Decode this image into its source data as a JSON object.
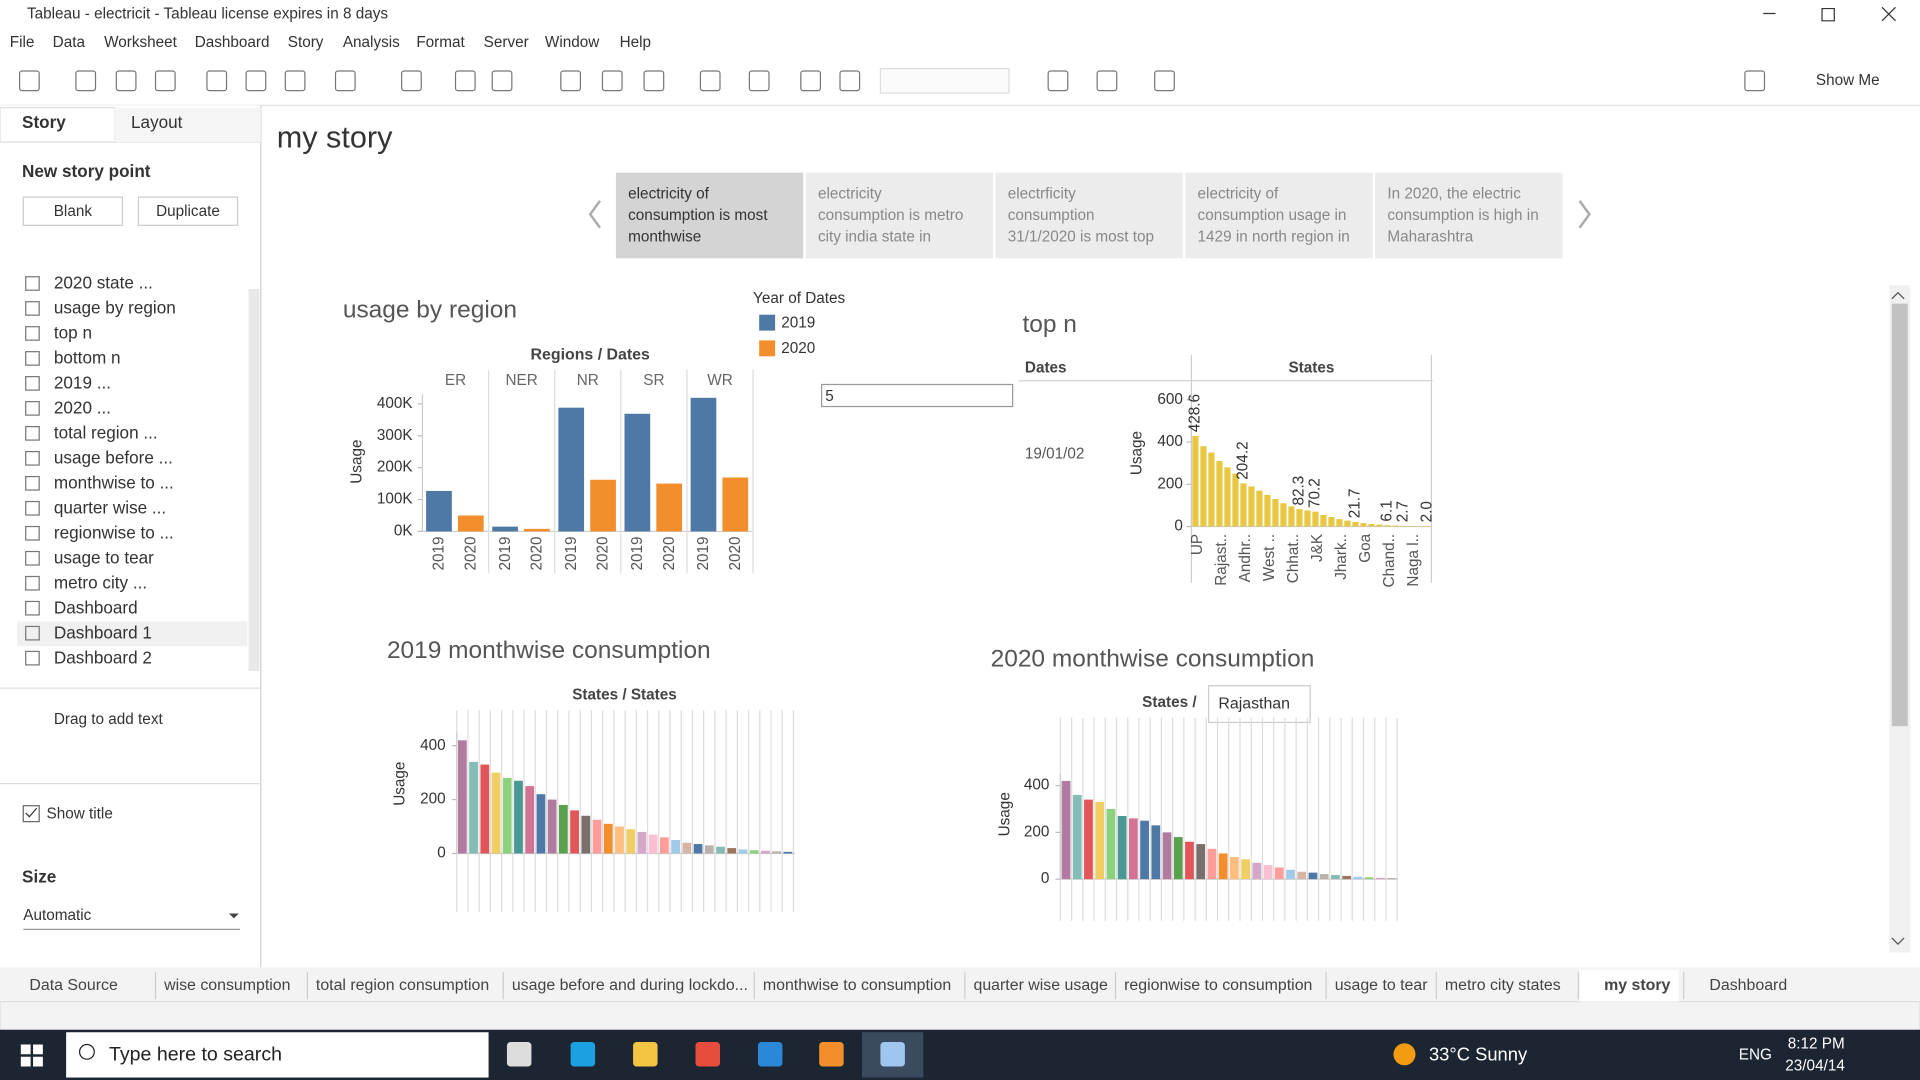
{
  "window": {
    "title": "Tableau - electricit - Tableau license expires in 8 days",
    "menu": [
      "File",
      "Data",
      "Worksheet",
      "Dashboard",
      "Story",
      "Analysis",
      "Format",
      "Server",
      "Window",
      "Help"
    ],
    "show_me": "Show Me"
  },
  "side_panel": {
    "tabs": [
      "Story",
      "Layout"
    ],
    "new_story_point": "New story point",
    "buttons": [
      "Blank",
      "Duplicate"
    ],
    "sheets": [
      "2020 state ...",
      "usage by region",
      "top n",
      "bottom n",
      "2019 ...",
      "2020 ...",
      "total region ...",
      "usage before ...",
      "monthwise to ...",
      "quarter wise ...",
      "regionwise to ...",
      "usage to tear",
      "metro city ...",
      "Dashboard",
      "Dashboard 1",
      "Dashboard 2"
    ],
    "drag_text": "Drag to add text",
    "show_title": "Show title",
    "size_label": "Size",
    "size_value": "Automatic"
  },
  "story": {
    "title": "my story",
    "points": [
      {
        "lines": [
          "electricity of",
          "consumption is most",
          "monthwise"
        ]
      },
      {
        "lines": [
          "electricity",
          "consumption is metro",
          "city india state  in"
        ]
      },
      {
        "lines": [
          "electrficity",
          "consumption",
          "31/1/2020 is most top"
        ]
      },
      {
        "lines": [
          "electricity of",
          "consumption usage in",
          "1429 in north region in"
        ]
      },
      {
        "lines": [
          "In 2020, the electric",
          "consumption is high in",
          "Maharashtra"
        ]
      }
    ]
  },
  "filter_input": 5,
  "tooltip": "Rajasthan",
  "charts": [
    {
      "type": "bar",
      "title": "usage by region",
      "header": "Regions / Dates",
      "y_label": "Usage",
      "legend_title": "Year of Dates",
      "categories": [
        "ER",
        "NER",
        "NR",
        "SR",
        "WR"
      ],
      "series": [
        {
          "name": "2019",
          "color": "#4e79a7",
          "values": [
            127,
            15,
            388,
            369,
            419
          ]
        },
        {
          "name": "2020",
          "color": "#f28e2b",
          "values": [
            50,
            8,
            162,
            150,
            169
          ]
        }
      ],
      "ylim": [
        0,
        430
      ],
      "yticks": [
        {
          "value": 0,
          "label": "0K"
        },
        {
          "value": 100,
          "label": "100K"
        },
        {
          "value": 200,
          "label": "200K"
        },
        {
          "value": 300,
          "label": "300K"
        },
        {
          "value": 400,
          "label": "400K"
        }
      ]
    },
    {
      "type": "bar",
      "title": "top n",
      "headers": [
        "Dates",
        "States"
      ],
      "row_label": "19/01/02",
      "y_label": "Usage",
      "color": "#e8c640",
      "categories": [
        "UP",
        null,
        null,
        "Rajast..",
        null,
        null,
        "Andhr..",
        null,
        null,
        "West ..",
        null,
        null,
        "Chhat..",
        null,
        null,
        "J&K",
        null,
        null,
        "Jhark..",
        null,
        null,
        "Goa",
        null,
        null,
        "Chand..",
        null,
        null,
        "Naga l..",
        null,
        null
      ],
      "values": [
        428.6,
        380,
        350,
        310,
        280,
        250,
        204.2,
        190,
        170,
        150,
        130,
        110,
        95,
        82.3,
        76,
        70.2,
        55,
        45,
        35,
        28,
        21.7,
        16,
        12,
        9,
        6.1,
        4.5,
        2.7,
        2.4,
        2.2,
        2.0
      ],
      "value_labels": [
        "428.6",
        null,
        null,
        null,
        null,
        null,
        "204.2",
        null,
        null,
        null,
        null,
        null,
        null,
        "82.3",
        null,
        "70.2",
        null,
        null,
        null,
        null,
        "21.7",
        null,
        null,
        null,
        "6.1",
        null,
        "2.7",
        null,
        null,
        "2.0"
      ],
      "ylim": [
        0,
        620
      ],
      "yticks": [
        0,
        200,
        400,
        600
      ]
    },
    {
      "type": "bar",
      "title": "2019 monthwise consumption",
      "header": "States / States",
      "y_label": "Usage",
      "values": [
        420,
        340,
        330,
        300,
        280,
        270,
        250,
        220,
        200,
        180,
        160,
        140,
        125,
        110,
        100,
        90,
        80,
        70,
        60,
        50,
        40,
        35,
        30,
        25,
        20,
        15,
        12,
        10,
        8,
        6
      ],
      "colors": [
        "#b07aa1",
        "#86bcb6",
        "#e15759",
        "#f1ce63",
        "#8cd17d",
        "#499894",
        "#d37295",
        "#4e79a7",
        "#b07aa1",
        "#59a14f",
        "#e15759",
        "#79706e",
        "#ff9d9a",
        "#f28e2b",
        "#ffbe7d",
        "#f1ce63",
        "#d4a6c8",
        "#fabfd2",
        "#ff9d9a",
        "#a0cbe8",
        "#d7b5a6",
        "#4e79a7",
        "#bab0ac",
        "#86bcb6",
        "#9d7660",
        "#a0cbe8",
        "#8cd17d",
        "#d4a6c8",
        "#bab0ac",
        "#4e79a7"
      ],
      "ylim": [
        0,
        450
      ],
      "yticks": [
        0,
        200,
        400
      ]
    },
    {
      "type": "bar",
      "title": "2020 monthwise consumption",
      "header": "States /",
      "y_label": "Usage",
      "values": [
        420,
        360,
        340,
        330,
        300,
        270,
        260,
        250,
        230,
        200,
        180,
        160,
        150,
        130,
        110,
        95,
        85,
        70,
        60,
        50,
        40,
        32,
        28,
        22,
        18,
        14,
        10,
        8,
        6,
        5
      ],
      "colors": [
        "#b07aa1",
        "#86bcb6",
        "#e15759",
        "#f1ce63",
        "#8cd17d",
        "#499894",
        "#d37295",
        "#4e79a7",
        "#4e79a7",
        "#b07aa1",
        "#59a14f",
        "#e15759",
        "#79706e",
        "#ff9d9a",
        "#f28e2b",
        "#ffbe7d",
        "#f1ce63",
        "#d4a6c8",
        "#fabfd2",
        "#ff9d9a",
        "#a0cbe8",
        "#d7b5a6",
        "#4e79a7",
        "#bab0ac",
        "#86bcb6",
        "#9d7660",
        "#a0cbe8",
        "#8cd17d",
        "#d4a6c8",
        "#bab0ac"
      ],
      "ylim": [
        0,
        450
      ],
      "yticks": [
        0,
        200,
        400
      ]
    }
  ],
  "sheet_tabs": [
    "Data Source",
    "wise consumption",
    "total region consumption",
    "usage before and during lockdo...",
    "monthwise to consumption",
    "quarter wise usage",
    "regionwise to consumption",
    "usage to tear",
    "metro city states",
    "my story",
    "Dashboard"
  ],
  "taskbar": {
    "search": "Type here to search",
    "weather": "33°C  Sunny",
    "language": "ENG",
    "time": "8:12 PM",
    "date": "23/04/14"
  }
}
